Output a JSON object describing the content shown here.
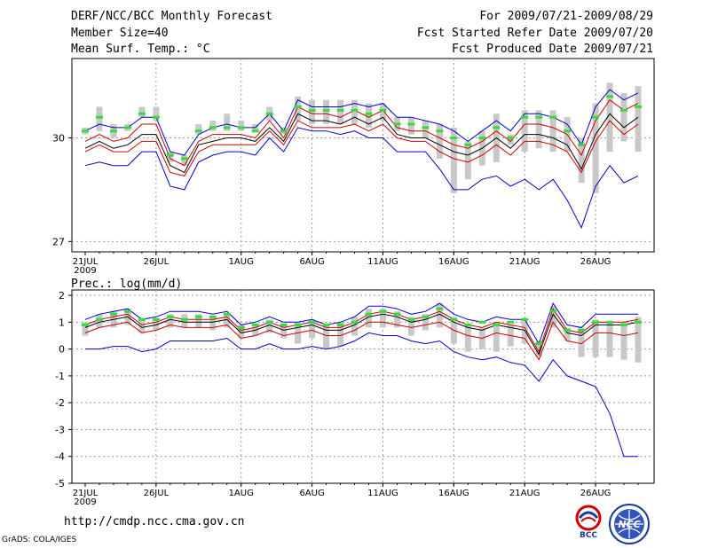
{
  "header": {
    "title": "DERF/NCC/BCC Monthly Forecast",
    "member_size": "Member Size=40",
    "variable": "Mean Surf. Temp.: °C",
    "period": "For 2009/07/21-2009/08/29",
    "start_date": "Fcst Started Refer Date 2009/07/20",
    "produced_date": "Fcst Produced Date 2009/07/21"
  },
  "footer": {
    "url": "http://cmdp.ncc.cma.gov.cn",
    "grads": "GrADS: COLA/IGES",
    "logo_left_text": "BCC",
    "logo_right_text": "NCC"
  },
  "colors": {
    "mean": "#000000",
    "band_inner": "#cc0000",
    "band_outer": "#0000cc",
    "median": "#33dd33",
    "bar": "#c8c8c8"
  },
  "chart_data": [
    {
      "type": "line",
      "title": "Mean Surf. Temp.: °C",
      "ylabel": "°C",
      "ylim": [
        26.7,
        32.3
      ],
      "yticks": [
        27,
        30
      ],
      "xlim": [
        0,
        39
      ],
      "xticks": [
        {
          "day": 0,
          "label": "21JUL",
          "sub": "2009"
        },
        {
          "day": 5,
          "label": "26JUL"
        },
        {
          "day": 11,
          "label": "1AUG"
        },
        {
          "day": 16,
          "label": "6AUG"
        },
        {
          "day": 21,
          "label": "11AUG"
        },
        {
          "day": 26,
          "label": "16AUG"
        },
        {
          "day": 31,
          "label": "21AUG"
        },
        {
          "day": 36,
          "label": "26AUG"
        }
      ],
      "series": [
        {
          "name": "max",
          "role": "outer",
          "values": [
            30.2,
            30.4,
            30.3,
            30.3,
            30.6,
            30.6,
            29.6,
            29.5,
            30.1,
            30.3,
            30.4,
            30.3,
            30.3,
            30.7,
            30.2,
            31.1,
            30.9,
            30.9,
            30.9,
            31.0,
            30.9,
            31.0,
            30.6,
            30.6,
            30.5,
            30.4,
            30.2,
            29.9,
            30.2,
            30.5,
            30.2,
            30.7,
            30.7,
            30.6,
            30.4,
            29.8,
            30.9,
            31.4,
            31.1,
            31.3
          ]
        },
        {
          "name": "upper",
          "role": "inner",
          "values": [
            29.9,
            30.1,
            29.9,
            30.0,
            30.4,
            30.4,
            29.4,
            29.2,
            29.9,
            30.1,
            30.1,
            30.1,
            30.0,
            30.5,
            30.0,
            30.9,
            30.7,
            30.7,
            30.6,
            30.8,
            30.6,
            30.8,
            30.3,
            30.2,
            30.2,
            30.0,
            29.8,
            29.7,
            29.9,
            30.2,
            29.9,
            30.4,
            30.4,
            30.3,
            30.1,
            29.5,
            30.5,
            31.1,
            30.8,
            31.0
          ]
        },
        {
          "name": "mean",
          "role": "mean",
          "values": [
            29.7,
            29.9,
            29.7,
            29.8,
            30.1,
            30.1,
            29.2,
            29.0,
            29.8,
            29.9,
            30.0,
            30.0,
            29.9,
            30.3,
            29.9,
            30.7,
            30.5,
            30.5,
            30.4,
            30.6,
            30.4,
            30.6,
            30.1,
            30.0,
            30.0,
            29.8,
            29.6,
            29.5,
            29.7,
            30.0,
            29.7,
            30.1,
            30.1,
            30.0,
            29.8,
            29.1,
            30.1,
            30.7,
            30.3,
            30.6
          ]
        },
        {
          "name": "lower",
          "role": "inner",
          "values": [
            29.6,
            29.8,
            29.6,
            29.6,
            29.9,
            29.9,
            29.0,
            28.9,
            29.6,
            29.8,
            29.8,
            29.8,
            29.8,
            30.2,
            29.8,
            30.5,
            30.3,
            30.3,
            30.3,
            30.4,
            30.2,
            30.4,
            30.0,
            29.9,
            29.9,
            29.6,
            29.4,
            29.3,
            29.5,
            29.8,
            29.5,
            29.9,
            29.9,
            29.8,
            29.6,
            29.0,
            29.9,
            30.5,
            30.1,
            30.4
          ]
        },
        {
          "name": "min",
          "role": "outer",
          "values": [
            29.2,
            29.3,
            29.2,
            29.2,
            29.6,
            29.6,
            28.6,
            28.5,
            29.3,
            29.5,
            29.6,
            29.6,
            29.5,
            30.0,
            29.6,
            30.3,
            30.2,
            30.2,
            30.1,
            30.2,
            30.0,
            30.0,
            29.6,
            29.6,
            29.6,
            29.1,
            28.5,
            28.5,
            28.8,
            28.9,
            28.6,
            28.8,
            28.5,
            28.8,
            28.2,
            27.4,
            28.6,
            29.2,
            28.7,
            28.9
          ]
        }
      ],
      "median": [
        30.2,
        30.6,
        30.2,
        30.3,
        30.7,
        30.6,
        29.5,
        29.4,
        30.2,
        30.3,
        30.3,
        30.3,
        30.2,
        30.7,
        30.2,
        30.9,
        30.8,
        30.8,
        30.8,
        30.8,
        30.7,
        30.8,
        30.4,
        30.4,
        30.3,
        30.2,
        30.0,
        29.8,
        30.0,
        30.3,
        30.0,
        30.6,
        30.6,
        30.6,
        30.2,
        29.8,
        30.6,
        31.2,
        30.8,
        30.9
      ],
      "bars": [
        [
          30.1,
          30.3
        ],
        [
          30.2,
          30.9
        ],
        [
          30.0,
          30.4
        ],
        [
          30.2,
          30.4
        ],
        [
          30.6,
          30.9
        ],
        [
          30.5,
          30.9
        ],
        [
          29.3,
          29.6
        ],
        [
          29.2,
          29.5
        ],
        [
          30.1,
          30.4
        ],
        [
          30.2,
          30.5
        ],
        [
          30.2,
          30.7
        ],
        [
          30.2,
          30.5
        ],
        [
          30.2,
          30.4
        ],
        [
          30.5,
          30.9
        ],
        [
          30.1,
          30.3
        ],
        [
          30.5,
          31.2
        ],
        [
          30.4,
          31.1
        ],
        [
          30.4,
          31.1
        ],
        [
          30.4,
          31.1
        ],
        [
          30.4,
          31.1
        ],
        [
          30.3,
          31.0
        ],
        [
          30.5,
          31.0
        ],
        [
          30.2,
          30.6
        ],
        [
          30.1,
          30.6
        ],
        [
          30.0,
          30.5
        ],
        [
          29.4,
          30.4
        ],
        [
          28.4,
          30.3
        ],
        [
          28.8,
          29.9
        ],
        [
          29.2,
          30.2
        ],
        [
          29.3,
          30.7
        ],
        [
          29.8,
          30.1
        ],
        [
          29.6,
          30.8
        ],
        [
          29.7,
          30.8
        ],
        [
          29.6,
          30.8
        ],
        [
          29.6,
          30.6
        ],
        [
          28.7,
          30.0
        ],
        [
          28.4,
          31.0
        ],
        [
          29.6,
          31.6
        ],
        [
          29.9,
          31.3
        ],
        [
          29.6,
          31.5
        ]
      ]
    },
    {
      "type": "line",
      "title": "Prec.: log(mm/d)",
      "ylabel": "log(mm/d)",
      "ylim": [
        -5,
        2.2
      ],
      "yticks": [
        2,
        1,
        0,
        -1,
        -2,
        -3,
        -4,
        -5
      ],
      "xlim": [
        0,
        39
      ],
      "xticks": [
        {
          "day": 0,
          "label": "21JUL",
          "sub": "2009"
        },
        {
          "day": 5,
          "label": "26JUL"
        },
        {
          "day": 11,
          "label": "1AUG"
        },
        {
          "day": 16,
          "label": "6AUG"
        },
        {
          "day": 21,
          "label": "11AUG"
        },
        {
          "day": 26,
          "label": "16AUG"
        },
        {
          "day": 31,
          "label": "21AUG"
        },
        {
          "day": 36,
          "label": "26AUG"
        }
      ],
      "series": [
        {
          "name": "max",
          "role": "outer",
          "values": [
            1.1,
            1.3,
            1.4,
            1.5,
            1.1,
            1.2,
            1.4,
            1.4,
            1.4,
            1.3,
            1.4,
            0.9,
            1.0,
            1.2,
            1.0,
            1.0,
            1.1,
            0.9,
            1.0,
            1.2,
            1.6,
            1.6,
            1.5,
            1.3,
            1.4,
            1.7,
            1.3,
            1.1,
            1.0,
            1.2,
            1.1,
            1.1,
            0.2,
            1.7,
            0.9,
            0.8,
            1.3,
            1.3,
            1.3,
            1.3
          ]
        },
        {
          "name": "upper",
          "role": "inner",
          "values": [
            0.9,
            1.1,
            1.2,
            1.3,
            0.9,
            1.0,
            1.2,
            1.1,
            1.1,
            1.1,
            1.2,
            0.7,
            0.8,
            1.0,
            0.8,
            0.9,
            1.0,
            0.8,
            0.8,
            1.0,
            1.3,
            1.4,
            1.3,
            1.1,
            1.2,
            1.4,
            1.1,
            0.9,
            0.8,
            1.0,
            0.9,
            0.8,
            -0.1,
            1.5,
            0.7,
            0.6,
            1.0,
            1.0,
            1.0,
            1.1
          ]
        },
        {
          "name": "mean",
          "role": "mean",
          "values": [
            0.8,
            1.0,
            1.1,
            1.2,
            0.8,
            0.9,
            1.1,
            1.0,
            1.0,
            1.0,
            1.1,
            0.6,
            0.7,
            0.9,
            0.7,
            0.8,
            0.9,
            0.7,
            0.7,
            0.9,
            1.2,
            1.3,
            1.2,
            1.0,
            1.1,
            1.3,
            1.0,
            0.8,
            0.7,
            0.9,
            0.8,
            0.7,
            -0.2,
            1.3,
            0.6,
            0.5,
            0.9,
            0.9,
            0.9,
            1.0
          ]
        },
        {
          "name": "lower",
          "role": "inner",
          "values": [
            0.6,
            0.8,
            0.9,
            1.0,
            0.6,
            0.7,
            0.9,
            0.8,
            0.8,
            0.8,
            0.9,
            0.4,
            0.5,
            0.7,
            0.5,
            0.6,
            0.7,
            0.5,
            0.5,
            0.7,
            1.0,
            1.0,
            0.9,
            0.8,
            0.9,
            1.0,
            0.7,
            0.5,
            0.4,
            0.6,
            0.5,
            0.4,
            -0.4,
            1.0,
            0.3,
            0.2,
            0.6,
            0.6,
            0.5,
            0.6
          ]
        },
        {
          "name": "min",
          "role": "outer",
          "values": [
            0.0,
            0.0,
            0.1,
            0.1,
            -0.1,
            0.0,
            0.3,
            0.3,
            0.3,
            0.3,
            0.4,
            0.0,
            0.0,
            0.2,
            0.0,
            0.0,
            0.1,
            0.0,
            0.1,
            0.3,
            0.6,
            0.5,
            0.5,
            0.3,
            0.2,
            0.3,
            -0.1,
            -0.3,
            -0.4,
            -0.3,
            -0.5,
            -0.6,
            -1.2,
            -0.4,
            -1.0,
            -1.2,
            -1.4,
            -2.4,
            -4.0,
            -4.0
          ]
        }
      ],
      "median": [
        0.9,
        1.1,
        1.3,
        1.4,
        1.1,
        1.1,
        1.2,
        1.1,
        1.2,
        1.2,
        1.3,
        0.8,
        0.9,
        1.0,
        0.9,
        0.9,
        1.0,
        0.9,
        0.9,
        1.0,
        1.3,
        1.4,
        1.3,
        1.1,
        1.2,
        1.5,
        1.1,
        0.9,
        1.0,
        0.9,
        1.0,
        1.1,
        0.2,
        1.4,
        0.7,
        0.7,
        1.0,
        1.0,
        0.9,
        1.0
      ],
      "bars": [
        [
          0.5,
          1.0
        ],
        [
          0.8,
          1.3
        ],
        [
          0.8,
          1.4
        ],
        [
          0.9,
          1.5
        ],
        [
          0.6,
          1.1
        ],
        [
          0.7,
          1.1
        ],
        [
          0.8,
          1.3
        ],
        [
          0.8,
          1.3
        ],
        [
          0.8,
          1.3
        ],
        [
          0.7,
          1.2
        ],
        [
          0.8,
          1.3
        ],
        [
          0.4,
          0.9
        ],
        [
          0.5,
          0.9
        ],
        [
          0.6,
          1.1
        ],
        [
          0.4,
          0.9
        ],
        [
          0.2,
          1.0
        ],
        [
          0.4,
          1.1
        ],
        [
          0.0,
          0.9
        ],
        [
          0.1,
          1.0
        ],
        [
          0.5,
          1.2
        ],
        [
          0.8,
          1.5
        ],
        [
          0.8,
          1.5
        ],
        [
          0.8,
          1.4
        ],
        [
          0.5,
          1.2
        ],
        [
          0.7,
          1.3
        ],
        [
          0.8,
          1.7
        ],
        [
          0.2,
          1.2
        ],
        [
          -0.1,
          0.9
        ],
        [
          0.0,
          0.8
        ],
        [
          -0.1,
          1.0
        ],
        [
          0.1,
          0.9
        ],
        [
          0.2,
          1.1
        ],
        [
          -0.3,
          0.3
        ],
        [
          0.8,
          1.6
        ],
        [
          0.3,
          0.8
        ],
        [
          -0.3,
          0.8
        ],
        [
          -0.3,
          1.1
        ],
        [
          -0.3,
          1.0
        ],
        [
          -0.4,
          1.0
        ],
        [
          -0.5,
          1.2
        ]
      ]
    }
  ]
}
